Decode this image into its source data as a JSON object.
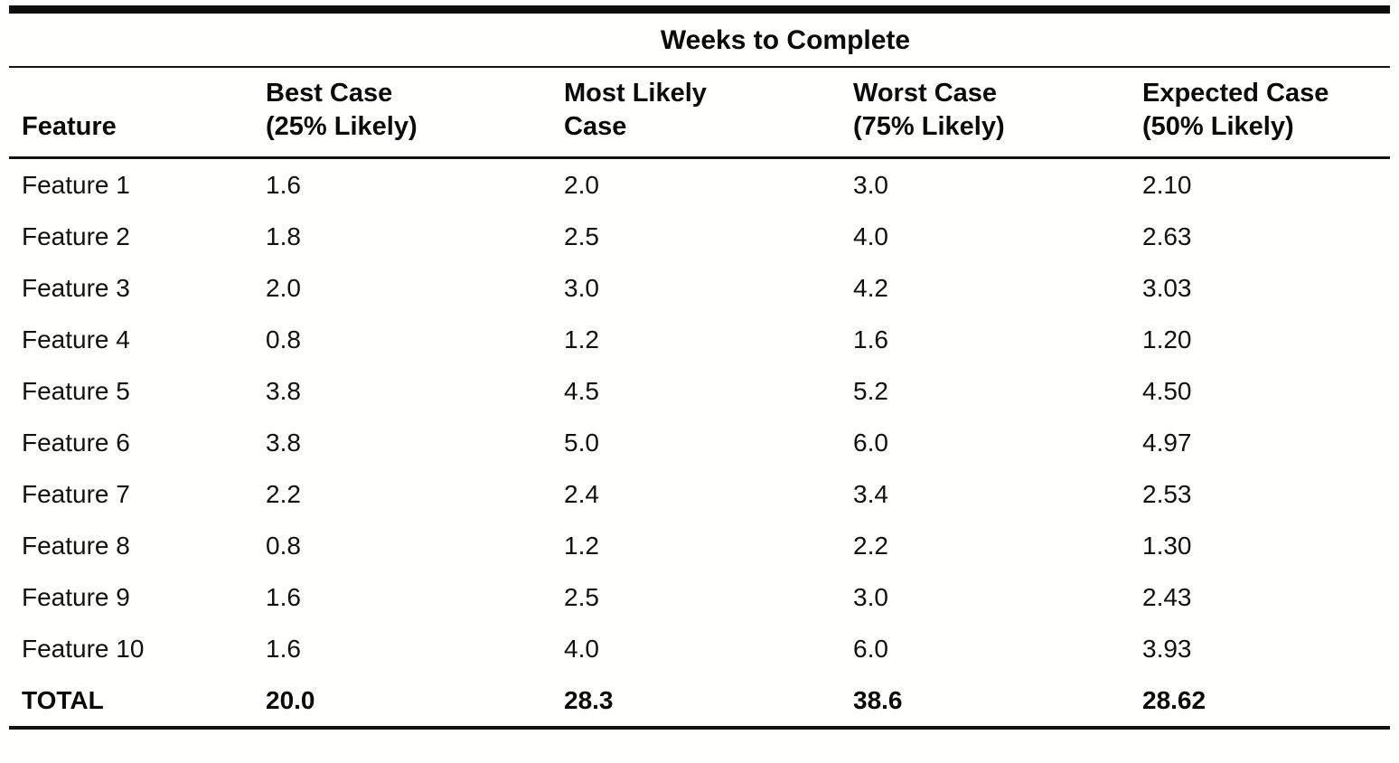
{
  "table": {
    "title": "Weeks to Complete",
    "columns": [
      {
        "line1": "Feature",
        "line2": ""
      },
      {
        "line1": "Best Case",
        "line2": "(25% Likely)"
      },
      {
        "line1": "Most Likely",
        "line2": "Case"
      },
      {
        "line1": "Worst Case",
        "line2": "(75% Likely)"
      },
      {
        "line1": "Expected Case",
        "line2": "(50% Likely)"
      }
    ],
    "rows": [
      {
        "feature": "Feature 1",
        "values": [
          "1.6",
          "2.0",
          "3.0",
          "2.10"
        ]
      },
      {
        "feature": "Feature 2",
        "values": [
          "1.8",
          "2.5",
          "4.0",
          "2.63"
        ]
      },
      {
        "feature": "Feature 3",
        "values": [
          "2.0",
          "3.0",
          "4.2",
          "3.03"
        ]
      },
      {
        "feature": "Feature 4",
        "values": [
          "0.8",
          "1.2",
          "1.6",
          "1.20"
        ]
      },
      {
        "feature": "Feature 5",
        "values": [
          "3.8",
          "4.5",
          "5.2",
          "4.50"
        ]
      },
      {
        "feature": "Feature 6",
        "values": [
          "3.8",
          "5.0",
          "6.0",
          "4.97"
        ]
      },
      {
        "feature": "Feature 7",
        "values": [
          "2.2",
          "2.4",
          "3.4",
          "2.53"
        ]
      },
      {
        "feature": "Feature 8",
        "values": [
          "0.8",
          "1.2",
          "2.2",
          "1.30"
        ]
      },
      {
        "feature": "Feature 9",
        "values": [
          "1.6",
          "2.5",
          "3.0",
          "2.43"
        ]
      },
      {
        "feature": "Feature 10",
        "values": [
          "1.6",
          "4.0",
          "6.0",
          "3.93"
        ]
      }
    ],
    "total": {
      "feature": "TOTAL",
      "values": [
        "20.0",
        "28.3",
        "38.6",
        "28.62"
      ]
    },
    "colors": {
      "ink": "#0e0e0e",
      "paper": "#fffffe"
    }
  }
}
